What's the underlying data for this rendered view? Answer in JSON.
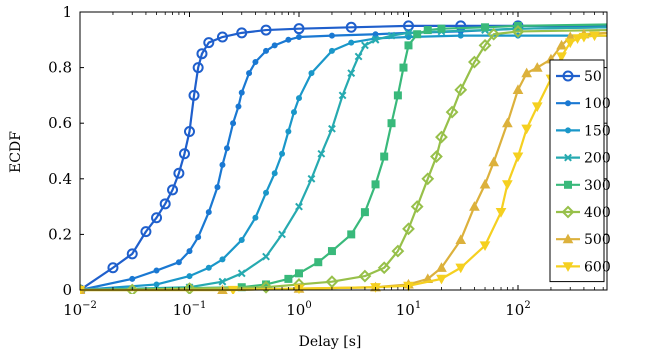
{
  "chart_data": {
    "type": "line",
    "xlabel": "Delay [s]",
    "ylabel": "ECDF",
    "xscale": "log",
    "xlim": [
      0.01,
      650
    ],
    "ylim": [
      0,
      1
    ],
    "x_ticks": [
      {
        "base": "10",
        "exp": "−2",
        "value": 0.01
      },
      {
        "base": "10",
        "exp": "−1",
        "value": 0.1
      },
      {
        "base": "10",
        "exp": "0",
        "value": 1
      },
      {
        "base": "10",
        "exp": "1",
        "value": 10
      },
      {
        "base": "10",
        "exp": "2",
        "value": 100
      }
    ],
    "y_ticks": [
      "0",
      "0.2",
      "0.4",
      "0.6",
      "0.8",
      "1"
    ],
    "legend_position": "right",
    "series": [
      {
        "name": "50",
        "color": "#1f5fcc",
        "marker": "circle",
        "x": [
          0.01,
          0.02,
          0.03,
          0.04,
          0.05,
          0.06,
          0.07,
          0.08,
          0.09,
          0.1,
          0.11,
          0.12,
          0.13,
          0.15,
          0.2,
          0.3,
          0.5,
          1,
          3,
          10,
          30,
          100,
          650
        ],
        "y": [
          0,
          0.08,
          0.13,
          0.21,
          0.26,
          0.31,
          0.36,
          0.42,
          0.49,
          0.57,
          0.7,
          0.8,
          0.85,
          0.89,
          0.91,
          0.925,
          0.935,
          0.94,
          0.945,
          0.95,
          0.95,
          0.95,
          0.95
        ]
      },
      {
        "name": "100",
        "color": "#1a78d2",
        "marker": "dot",
        "x": [
          0.01,
          0.03,
          0.05,
          0.08,
          0.1,
          0.12,
          0.15,
          0.18,
          0.2,
          0.22,
          0.25,
          0.28,
          0.3,
          0.35,
          0.4,
          0.5,
          0.6,
          0.8,
          1,
          2,
          5,
          10,
          30,
          100,
          650
        ],
        "y": [
          0,
          0.04,
          0.07,
          0.1,
          0.14,
          0.19,
          0.28,
          0.37,
          0.45,
          0.51,
          0.6,
          0.66,
          0.71,
          0.78,
          0.82,
          0.86,
          0.88,
          0.9,
          0.91,
          0.915,
          0.92,
          0.925,
          0.93,
          0.94,
          0.945
        ]
      },
      {
        "name": "150",
        "color": "#1a97c9",
        "marker": "dot",
        "x": [
          0.01,
          0.05,
          0.1,
          0.15,
          0.2,
          0.3,
          0.4,
          0.5,
          0.6,
          0.7,
          0.8,
          0.9,
          1,
          1.3,
          2,
          3,
          5,
          10,
          30,
          100,
          650
        ],
        "y": [
          0,
          0.02,
          0.05,
          0.08,
          0.11,
          0.18,
          0.26,
          0.35,
          0.42,
          0.49,
          0.57,
          0.64,
          0.69,
          0.78,
          0.86,
          0.89,
          0.905,
          0.91,
          0.915,
          0.915,
          0.915
        ]
      },
      {
        "name": "200",
        "color": "#26aab0",
        "marker": "cross",
        "x": [
          0.01,
          0.1,
          0.2,
          0.3,
          0.5,
          0.7,
          1,
          1.3,
          1.6,
          2,
          2.5,
          3,
          3.5,
          4,
          5,
          7,
          10,
          20,
          50,
          100,
          650
        ],
        "y": [
          0,
          0.01,
          0.03,
          0.06,
          0.12,
          0.2,
          0.3,
          0.4,
          0.49,
          0.58,
          0.7,
          0.78,
          0.84,
          0.88,
          0.9,
          0.915,
          0.925,
          0.93,
          0.935,
          0.94,
          0.945
        ]
      },
      {
        "name": "300",
        "color": "#39b97b",
        "marker": "square",
        "x": [
          0.01,
          0.3,
          0.5,
          0.8,
          1,
          1.5,
          2,
          3,
          4,
          5,
          6,
          7,
          8,
          9,
          10,
          12,
          15,
          20,
          50,
          100,
          650
        ],
        "y": [
          0,
          0.01,
          0.02,
          0.04,
          0.06,
          0.1,
          0.14,
          0.2,
          0.28,
          0.38,
          0.48,
          0.6,
          0.7,
          0.8,
          0.88,
          0.92,
          0.935,
          0.94,
          0.945,
          0.95,
          0.955
        ]
      },
      {
        "name": "400",
        "color": "#97c04a",
        "marker": "diamond",
        "x": [
          0.01,
          0.03,
          0.1,
          0.5,
          1,
          2,
          4,
          6,
          8,
          10,
          12,
          15,
          18,
          20,
          25,
          30,
          40,
          50,
          60,
          100,
          650
        ],
        "y": [
          0,
          0,
          0.005,
          0.01,
          0.02,
          0.03,
          0.05,
          0.08,
          0.14,
          0.22,
          0.3,
          0.4,
          0.48,
          0.55,
          0.64,
          0.72,
          0.82,
          0.88,
          0.92,
          0.93,
          0.935
        ]
      },
      {
        "name": "500",
        "color": "#dcb13c",
        "marker": "triangle",
        "x": [
          0.01,
          0.2,
          1,
          5,
          10,
          15,
          20,
          30,
          40,
          50,
          60,
          80,
          100,
          120,
          150,
          200,
          250,
          300,
          400,
          650
        ],
        "y": [
          0,
          0,
          0.005,
          0.01,
          0.02,
          0.04,
          0.08,
          0.18,
          0.3,
          0.38,
          0.46,
          0.6,
          0.72,
          0.78,
          0.8,
          0.83,
          0.88,
          0.91,
          0.92,
          0.925
        ]
      },
      {
        "name": "600",
        "color": "#f5d020",
        "marker": "triangle-down",
        "x": [
          0.01,
          0.25,
          1,
          5,
          10,
          20,
          30,
          50,
          70,
          80,
          100,
          120,
          150,
          200,
          250,
          300,
          350,
          400,
          500,
          650
        ],
        "y": [
          0,
          0,
          0.005,
          0.01,
          0.015,
          0.04,
          0.08,
          0.16,
          0.28,
          0.38,
          0.48,
          0.58,
          0.66,
          0.76,
          0.84,
          0.89,
          0.905,
          0.91,
          0.915,
          0.915
        ]
      }
    ]
  }
}
